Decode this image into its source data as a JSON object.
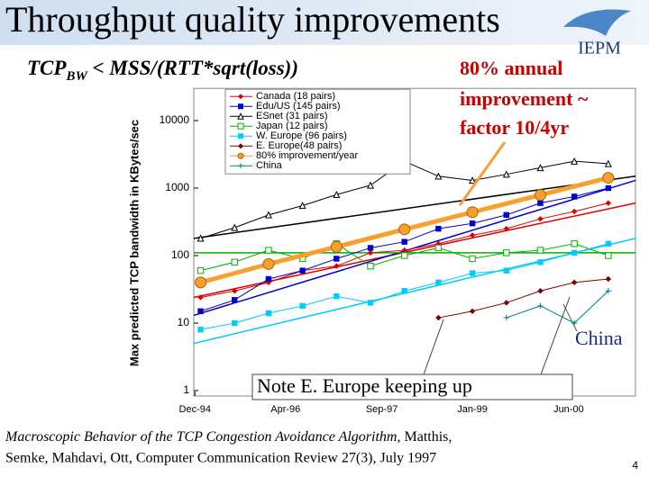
{
  "slide": {
    "title": "Throughput quality improvements",
    "formula": {
      "main": "TCP",
      "subscript": "BW",
      "rest": " < MSS/(RTT*sqrt(loss))"
    },
    "annotation": [
      "80% annual",
      "improvement ~",
      "factor 10/4yr"
    ],
    "china_label": "China",
    "note": "Note E. Europe keeping up",
    "citation": {
      "title": "Macroscopic Behavior of the TCP Congestion Avoidance Algorithm",
      "line1_rest": ", Matthis,",
      "line2": "Semke, Mahdavi, Ott, Computer Communication Review 27(3), July 1997"
    },
    "logo": "IEPM",
    "page_number": "4"
  },
  "chart_data": {
    "type": "line",
    "y_label": "Max predicted TCP bandwidth in KBytes/sec",
    "log_y": true,
    "grid": false,
    "xlim": [
      1994.9,
      2001.4
    ],
    "xticks": [
      {
        "value": 1994.917,
        "label": "Dec-94"
      },
      {
        "value": 1996.25,
        "label": "Apr-96"
      },
      {
        "value": 1997.667,
        "label": "Sep-97"
      },
      {
        "value": 1999.0,
        "label": "Jan-99"
      },
      {
        "value": 2000.417,
        "label": "Jun-00"
      }
    ],
    "ylim": [
      1,
      30000
    ],
    "yticks": [
      1,
      10,
      100,
      1000,
      10000
    ],
    "x": [
      1995.0,
      1995.5,
      1996.0,
      1996.5,
      1997.0,
      1997.5,
      1998.0,
      1998.5,
      1999.0,
      1999.5,
      2000.0,
      2000.5,
      2001.0
    ],
    "series": [
      {
        "name": "Canada (18 pairs)",
        "color": "#e00000",
        "marker": "diamond",
        "values": [
          24,
          30,
          40,
          60,
          70,
          110,
          120,
          150,
          200,
          250,
          350,
          450,
          600
        ],
        "trend": [
          24,
          600
        ]
      },
      {
        "name": "Edu/US (145 pairs)",
        "color": "#0000cc",
        "marker": "square",
        "values": [
          15,
          22,
          45,
          60,
          90,
          130,
          160,
          250,
          300,
          400,
          600,
          750,
          1000
        ],
        "trend": [
          13,
          1300
        ]
      },
      {
        "name": "ESnet (31 pairs)",
        "color": "#000000",
        "marker": "triangle-open",
        "values": [
          180,
          260,
          400,
          550,
          800,
          1100,
          2500,
          1500,
          1300,
          1600,
          2000,
          2500,
          2300
        ],
        "trend": [
          180,
          1500
        ]
      },
      {
        "name": "Japan (12 pairs)",
        "color": "#00b000",
        "marker": "square-open",
        "values": [
          60,
          80,
          120,
          90,
          150,
          70,
          100,
          130,
          90,
          110,
          120,
          150,
          100
        ],
        "trend": [
          110,
          110
        ]
      },
      {
        "name": "W. Europe (96 pairs)",
        "color": "#00ccff",
        "marker": "square",
        "values": [
          8,
          10,
          14,
          18,
          25,
          20,
          30,
          40,
          55,
          60,
          80,
          110,
          150
        ],
        "trend": [
          5,
          180
        ]
      },
      {
        "name": "E. Europe(48 pairs)",
        "color": "#800000",
        "marker": "diamond",
        "values": [
          null,
          null,
          null,
          null,
          null,
          null,
          null,
          12,
          15,
          20,
          30,
          40,
          45
        ]
      },
      {
        "name": "80% improvement/year",
        "color": "#f7a030",
        "marker": "circle",
        "x": [
          1995.0,
          1996.0,
          1997.0,
          1998.0,
          1999.0,
          2000.0,
          2001.0
        ],
        "values": [
          40,
          75,
          135,
          245,
          440,
          790,
          1420
        ]
      },
      {
        "name": "China",
        "color": "#008080",
        "marker": "plus",
        "values": [
          null,
          null,
          null,
          null,
          null,
          null,
          null,
          null,
          null,
          12,
          18,
          10,
          30
        ]
      }
    ]
  }
}
